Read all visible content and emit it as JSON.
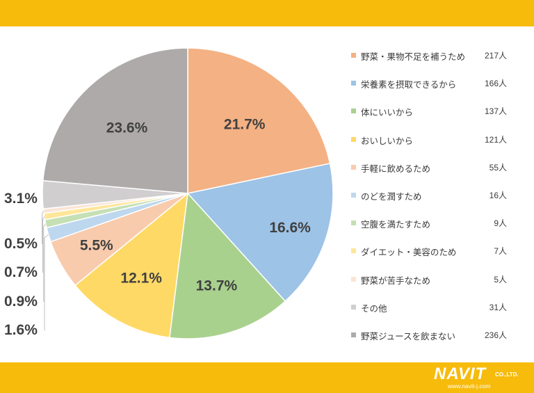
{
  "chart_data": {
    "type": "pie",
    "title": "",
    "slices": [
      {
        "label": "野菜・果物不足を補うため",
        "count": "217人",
        "value": 21.7,
        "color": "#f4b183",
        "label_text": "21.7%"
      },
      {
        "label": "栄養素を摂取できるから",
        "count": "166人",
        "value": 16.6,
        "color": "#9dc3e6",
        "label_text": "16.6%"
      },
      {
        "label": "体にいいから",
        "count": "137人",
        "value": 13.7,
        "color": "#a9d18e",
        "label_text": "13.7%"
      },
      {
        "label": "おいしいから",
        "count": "121人",
        "value": 12.1,
        "color": "#ffd966",
        "label_text": "12.1%"
      },
      {
        "label": "手軽に飲めるため",
        "count": "55人",
        "value": 5.5,
        "color": "#f8cbad",
        "label_text": "5.5%"
      },
      {
        "label": "のどを潤すため",
        "count": "16人",
        "value": 1.6,
        "color": "#bdd7ee",
        "label_text": "1.6%"
      },
      {
        "label": "空腹を満たすため",
        "count": "9人",
        "value": 0.9,
        "color": "#c5e0b4",
        "label_text": "0.9%"
      },
      {
        "label": "ダイエット・美容のため",
        "count": "7人",
        "value": 0.7,
        "color": "#ffe699",
        "label_text": "0.7%"
      },
      {
        "label": "野菜が苦手なため",
        "count": "5人",
        "value": 0.5,
        "color": "#fbe5d6",
        "label_text": "0.5%"
      },
      {
        "label": "その他",
        "count": "31人",
        "value": 3.1,
        "color": "#d0cece",
        "label_text": "3.1%"
      },
      {
        "label": "野菜ジュースを飲まない",
        "count": "236人",
        "value": 23.6,
        "color": "#aeaaaa",
        "label_text": "23.6%"
      }
    ],
    "legend_position": "right"
  },
  "brand": {
    "name": "NAVIT",
    "suffix": "CO.,LTD.",
    "url": "www.navit-j.com",
    "band_color": "#f7bb0c"
  }
}
